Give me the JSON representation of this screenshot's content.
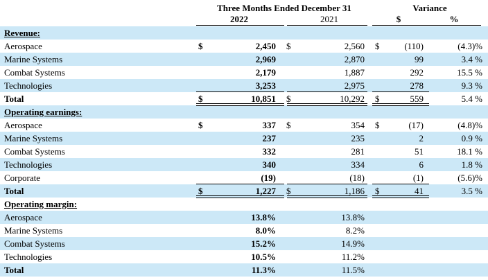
{
  "header": {
    "period": "Three Months Ended December 31",
    "year_current": "2022",
    "year_prior": "2021",
    "variance": "Variance",
    "variance_dollar": "$",
    "variance_pct": "%"
  },
  "colors": {
    "shade": "#cce8f7"
  },
  "rows": [
    {
      "type": "section",
      "label": "Revenue:",
      "shaded": true
    },
    {
      "type": "data",
      "label": "Aerospace",
      "d1": "$",
      "v1": "2,450",
      "d2": "$",
      "v2": "2,560",
      "d3": "$",
      "v3": "(110)",
      "pct": "(4.3)%",
      "shaded": false
    },
    {
      "type": "data",
      "label": "Marine Systems",
      "d1": "",
      "v1": "2,969",
      "d2": "",
      "v2": "2,870",
      "d3": "",
      "v3": "99",
      "pct": "3.4 %",
      "shaded": true
    },
    {
      "type": "data",
      "label": "Combat Systems",
      "d1": "",
      "v1": "2,179",
      "d2": "",
      "v2": "1,887",
      "d3": "",
      "v3": "292",
      "pct": "15.5 %",
      "shaded": false
    },
    {
      "type": "data",
      "label": "Technologies",
      "d1": "",
      "v1": "3,253",
      "d2": "",
      "v2": "2,975",
      "d3": "",
      "v3": "278",
      "pct": "9.3 %",
      "shaded": true
    },
    {
      "type": "total",
      "label": "Total",
      "d1": "$",
      "v1": "10,851",
      "d2": "$",
      "v2": "10,292",
      "d3": "$",
      "v3": "559",
      "pct": "5.4 %",
      "shaded": false
    },
    {
      "type": "section",
      "label": "Operating earnings:",
      "shaded": true
    },
    {
      "type": "data",
      "label": "Aerospace",
      "d1": "$",
      "v1": "337",
      "d2": "$",
      "v2": "354",
      "d3": "$",
      "v3": "(17)",
      "pct": "(4.8)%",
      "shaded": false
    },
    {
      "type": "data",
      "label": "Marine Systems",
      "d1": "",
      "v1": "237",
      "d2": "",
      "v2": "235",
      "d3": "",
      "v3": "2",
      "pct": "0.9 %",
      "shaded": true
    },
    {
      "type": "data",
      "label": "Combat Systems",
      "d1": "",
      "v1": "332",
      "d2": "",
      "v2": "281",
      "d3": "",
      "v3": "51",
      "pct": "18.1 %",
      "shaded": false
    },
    {
      "type": "data",
      "label": "Technologies",
      "d1": "",
      "v1": "340",
      "d2": "",
      "v2": "334",
      "d3": "",
      "v3": "6",
      "pct": "1.8 %",
      "shaded": true
    },
    {
      "type": "data",
      "label": "Corporate",
      "d1": "",
      "v1": "(19)",
      "d2": "",
      "v2": "(18)",
      "d3": "",
      "v3": "(1)",
      "pct": "(5.6)%",
      "shaded": false
    },
    {
      "type": "total",
      "label": "Total",
      "d1": "$",
      "v1": "1,227",
      "d2": "$",
      "v2": "1,186",
      "d3": "$",
      "v3": "41",
      "pct": "3.5 %",
      "shaded": true
    },
    {
      "type": "section",
      "label": "Operating margin:",
      "shaded": false
    },
    {
      "type": "data",
      "label": "Aerospace",
      "d1": "",
      "v1": "13.8%",
      "d2": "",
      "v2": "13.8%",
      "d3": "",
      "v3": "",
      "pct": "",
      "shaded": true
    },
    {
      "type": "data",
      "label": "Marine Systems",
      "d1": "",
      "v1": "8.0%",
      "d2": "",
      "v2": "8.2%",
      "d3": "",
      "v3": "",
      "pct": "",
      "shaded": false
    },
    {
      "type": "data",
      "label": "Combat Systems",
      "d1": "",
      "v1": "15.2%",
      "d2": "",
      "v2": "14.9%",
      "d3": "",
      "v3": "",
      "pct": "",
      "shaded": true
    },
    {
      "type": "data",
      "label": "Technologies",
      "d1": "",
      "v1": "10.5%",
      "d2": "",
      "v2": "11.2%",
      "d3": "",
      "v3": "",
      "pct": "",
      "shaded": false
    },
    {
      "type": "margintotal",
      "label": "Total",
      "d1": "",
      "v1": "11.3%",
      "d2": "",
      "v2": "11.5%",
      "d3": "",
      "v3": "",
      "pct": "",
      "shaded": true
    }
  ]
}
